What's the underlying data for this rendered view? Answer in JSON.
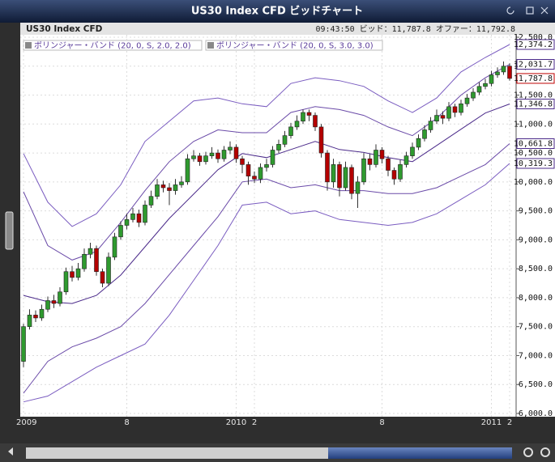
{
  "window": {
    "title": "US30 Index CFD ビッドチャート"
  },
  "chart_data": {
    "type": "candlestick",
    "title": "US30 Index CFD",
    "status": "09:43:50  ビッド：11,787.8  オファー：11,792.8",
    "legend": [
      "ボリンジャー・バンド (20, 0, S, 2.0, 2.0)",
      "ボリンジャー・バンド (20, 0, S, 3.0, 3.0)"
    ],
    "categories": [
      "2009",
      null,
      null,
      null,
      null,
      null,
      null,
      null,
      null,
      null,
      null,
      null,
      null,
      null,
      null,
      null,
      null,
      "8",
      null,
      null,
      null,
      null,
      null,
      null,
      null,
      null,
      null,
      null,
      null,
      null,
      null,
      null,
      null,
      null,
      null,
      "2010",
      null,
      null,
      "2",
      null,
      null,
      null,
      null,
      null,
      null,
      null,
      null,
      null,
      null,
      null,
      null,
      null,
      null,
      null,
      null,
      null,
      null,
      null,
      null,
      "8",
      null,
      null,
      null,
      null,
      null,
      null,
      null,
      null,
      null,
      null,
      null,
      null,
      null,
      null,
      null,
      null,
      null,
      "2011",
      null,
      null,
      "2"
    ],
    "open": [
      6900,
      7500,
      7700,
      7650,
      7800,
      7950,
      7900,
      8100,
      8450,
      8350,
      8500,
      8750,
      8850,
      8450,
      8250,
      8700,
      9050,
      9250,
      9350,
      9450,
      9300,
      9600,
      9750,
      9950,
      9900,
      9850,
      9950,
      10000,
      10400,
      10450,
      10350,
      10450,
      10500,
      10400,
      10550,
      10600,
      10400,
      10300,
      10100,
      10050,
      10250,
      10300,
      10550,
      10650,
      10800,
      10950,
      11050,
      11200,
      11150,
      10950,
      10500,
      10000,
      10300,
      9900,
      10250,
      9800,
      10000,
      10400,
      10300,
      10550,
      10400,
      10200,
      10050,
      10300,
      10450,
      10600,
      10750,
      10900,
      11050,
      11150,
      11100,
      11300,
      11200,
      11350,
      11450,
      11550,
      11650,
      11700,
      11850,
      11900,
      12000
    ],
    "high": [
      7550,
      7800,
      7780,
      7880,
      8020,
      8050,
      8180,
      8520,
      8550,
      8600,
      8850,
      8950,
      8900,
      8500,
      8780,
      9120,
      9320,
      9450,
      9550,
      9520,
      9680,
      9850,
      10050,
      10020,
      9980,
      10050,
      10100,
      10480,
      10550,
      10500,
      10520,
      10600,
      10560,
      10620,
      10700,
      10650,
      10450,
      10350,
      10180,
      10320,
      10400,
      10620,
      10730,
      10880,
      11020,
      11150,
      11250,
      11250,
      11200,
      11000,
      10550,
      10400,
      10350,
      10350,
      10300,
      10100,
      10500,
      10480,
      10650,
      10600,
      10450,
      10250,
      10380,
      10520,
      10680,
      10820,
      10980,
      11120,
      11250,
      11220,
      11380,
      11350,
      11420,
      11520,
      11620,
      11720,
      11780,
      11920,
      11980,
      12080,
      12050
    ],
    "low": [
      6800,
      7450,
      7580,
      7600,
      7750,
      7820,
      7850,
      8050,
      8280,
      8300,
      8450,
      8680,
      8380,
      8180,
      8200,
      8650,
      9000,
      9180,
      9300,
      9220,
      9250,
      9550,
      9700,
      9820,
      9600,
      9780,
      9900,
      9950,
      10350,
      10280,
      10300,
      10400,
      10330,
      10350,
      10480,
      10330,
      10150,
      9950,
      9980,
      9980,
      10180,
      10250,
      10500,
      10600,
      10750,
      10900,
      11000,
      11050,
      10880,
      10420,
      9850,
      9900,
      9750,
      9850,
      9700,
      9550,
      9950,
      10200,
      10250,
      10320,
      10100,
      9950,
      10000,
      10250,
      10400,
      10550,
      10700,
      10850,
      11000,
      11000,
      11050,
      11120,
      11150,
      11300,
      11400,
      11500,
      11600,
      11650,
      11800,
      11850,
      11750
    ],
    "close": [
      7500,
      7700,
      7650,
      7800,
      7950,
      7900,
      8100,
      8450,
      8350,
      8500,
      8750,
      8850,
      8450,
      8250,
      8700,
      9050,
      9250,
      9350,
      9450,
      9300,
      9600,
      9750,
      9950,
      9900,
      9850,
      9950,
      10000,
      10400,
      10450,
      10350,
      10450,
      10500,
      10400,
      10550,
      10600,
      10400,
      10300,
      10100,
      10050,
      10250,
      10300,
      10550,
      10650,
      10800,
      10950,
      11050,
      11200,
      11150,
      10950,
      10500,
      10000,
      10300,
      9900,
      10250,
      9800,
      10000,
      10400,
      10300,
      10550,
      10400,
      10200,
      10050,
      10300,
      10450,
      10600,
      10750,
      10900,
      11050,
      11150,
      11100,
      11300,
      11200,
      11350,
      11450,
      11550,
      11650,
      11700,
      11850,
      11900,
      12000,
      11787.8
    ],
    "close_label": "11,787.8",
    "up_color": "#2f9a2f",
    "down_color": "#b40000",
    "band_x": [
      0,
      4,
      8,
      12,
      16,
      20,
      24,
      28,
      32,
      36,
      40,
      44,
      48,
      52,
      56,
      60,
      64,
      68,
      72,
      76,
      80
    ],
    "bands": [
      {
        "color": "#7a5cc0",
        "values": [
          10490,
          9650,
          9230,
          9450,
          9950,
          10700,
          11050,
          11400,
          11450,
          11350,
          11300,
          11700,
          11800,
          11750,
          11650,
          11400,
          11200,
          11450,
          11900,
          12150,
          12374.2
        ],
        "last_label": "12,374.2"
      },
      {
        "color": "#6a4aa8",
        "values": [
          9830,
          8900,
          8650,
          8800,
          9300,
          9850,
          10350,
          10700,
          10900,
          10850,
          10850,
          11200,
          11300,
          11250,
          11150,
          10950,
          10800,
          11100,
          11500,
          11800,
          12031.7
        ],
        "last_label": "12,031.7"
      },
      {
        "color": "#4b2a8a",
        "values": [
          8040,
          7930,
          7900,
          8040,
          8390,
          8880,
          9370,
          9790,
          10210,
          10490,
          10420,
          10560,
          10700,
          10560,
          10510,
          10420,
          10350,
          10630,
          10910,
          11190,
          11346.8
        ],
        "last_label": "11,346.8"
      },
      {
        "color": "#6a4aa8",
        "values": [
          6350,
          6900,
          7150,
          7300,
          7500,
          7900,
          8400,
          8900,
          9400,
          10000,
          10050,
          9900,
          9950,
          9850,
          9850,
          9800,
          9800,
          9900,
          10100,
          10300,
          10661.8
        ],
        "last_label": "10,661.8"
      },
      {
        "color": "#7a5cc0",
        "values": [
          6200,
          6300,
          6550,
          6800,
          7000,
          7200,
          7700,
          8300,
          8900,
          9600,
          9650,
          9450,
          9500,
          9350,
          9300,
          9250,
          9300,
          9450,
          9700,
          9950,
          10319.3
        ],
        "last_label": "10,319.3"
      }
    ],
    "ylim": [
      6000,
      12500
    ],
    "yticks": [
      {
        "value": 6000,
        "label": "6,000.0"
      },
      {
        "value": 6500,
        "label": "6,500.0"
      },
      {
        "value": 7000,
        "label": "7,000.0"
      },
      {
        "value": 7500,
        "label": "7,500.0"
      },
      {
        "value": 8000,
        "label": "8,000.0"
      },
      {
        "value": 8500,
        "label": "8,500.0"
      },
      {
        "value": 9000,
        "label": "9,000.0"
      },
      {
        "value": 9500,
        "label": "9,500.0"
      },
      {
        "value": 10000,
        "label": "10,000.0"
      },
      {
        "value": 10500,
        "label": "10,500.0"
      },
      {
        "value": 11000,
        "label": "11,000.0"
      },
      {
        "value": 11500,
        "label": "11,500.0"
      },
      {
        "value": 12000,
        "label": "12,000.0"
      },
      {
        "value": 12500,
        "label": "12,500.0"
      }
    ],
    "grid": true
  }
}
